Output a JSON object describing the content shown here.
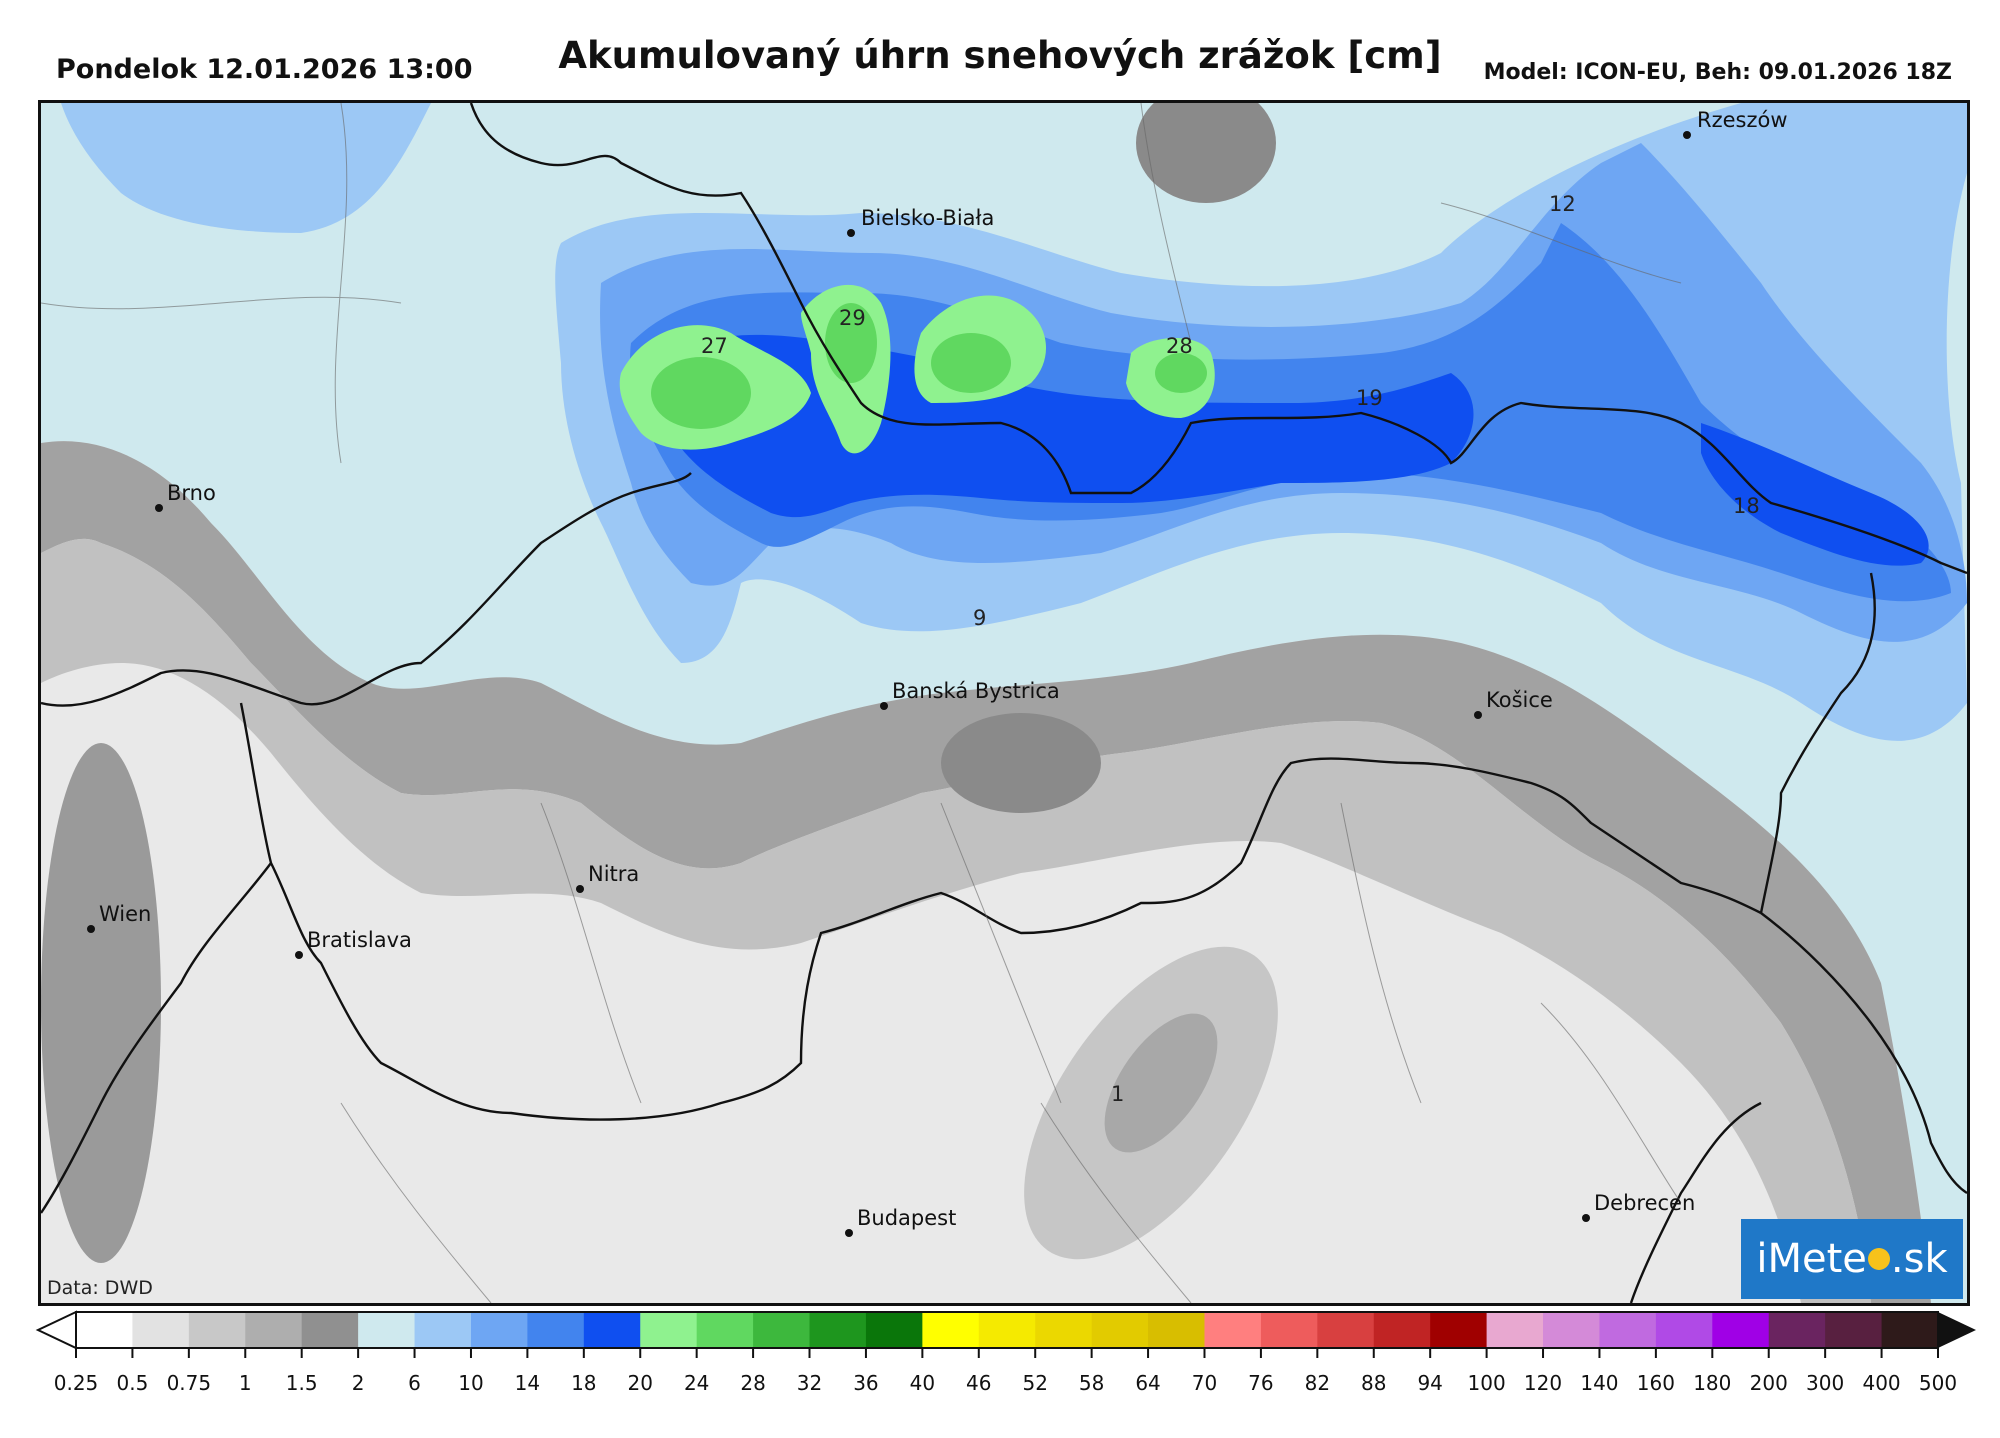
{
  "header": {
    "date": "Pondelok 12.01.2026 13:00",
    "title": "Akumulovaný úhrn snehových zrážok [cm]",
    "model": "Model: ICON-EU, Beh: 09.01.2026 18Z"
  },
  "map": {
    "credit": "Data: DWD",
    "logo": {
      "left": "iMete",
      "right": ".sk"
    },
    "cities": [
      {
        "name": "Rzeszów"
      },
      {
        "name": "Bielsko-Biała"
      },
      {
        "name": "Brno"
      },
      {
        "name": "Banská Bystrica"
      },
      {
        "name": "Košice"
      },
      {
        "name": "Nitra"
      },
      {
        "name": "Wien"
      },
      {
        "name": "Bratislava"
      },
      {
        "name": "Budapest"
      },
      {
        "name": "Debrecen"
      }
    ],
    "value_labels": [
      "27",
      "29",
      "28",
      "19",
      "12",
      "18",
      "9",
      "1"
    ]
  },
  "legend": {
    "ticks": [
      "0.25",
      "0.5",
      "0.75",
      "1",
      "1.5",
      "2",
      "6",
      "10",
      "14",
      "18",
      "20",
      "24",
      "28",
      "32",
      "36",
      "40",
      "46",
      "52",
      "58",
      "64",
      "70",
      "76",
      "82",
      "88",
      "94",
      "100",
      "120",
      "140",
      "160",
      "180",
      "200",
      "300",
      "400",
      "500"
    ],
    "colors": [
      "#ffffff",
      "#e2e2e2",
      "#c8c8c8",
      "#aeaeae",
      "#909090",
      "#cfe9ee",
      "#9cc8f5",
      "#6ea6f3",
      "#4284ee",
      "#0f4ff0",
      "#8ff28f",
      "#60d860",
      "#3db83d",
      "#1e961e",
      "#0a760a",
      "#ffff00",
      "#f5ea00",
      "#ebd800",
      "#e2cb00",
      "#d8be00",
      "#ff7f7f",
      "#ee5c5c",
      "#d84040",
      "#c02424",
      "#a00000",
      "#e8a8d0",
      "#d48ad8",
      "#c06ae0",
      "#b04ae6",
      "#a000e6",
      "#6a2460",
      "#582040",
      "#2e1a1a"
    ],
    "low_arrow_color": "#ffffff",
    "high_arrow_color": "#111111"
  }
}
